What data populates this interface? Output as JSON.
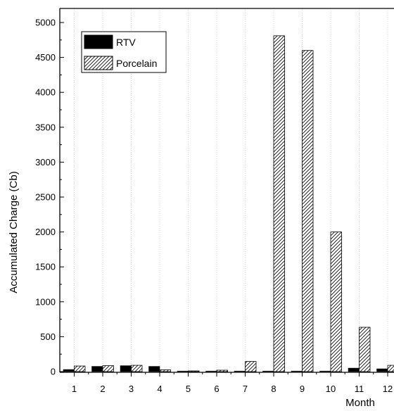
{
  "chart_data": {
    "type": "bar",
    "title": "",
    "xlabel": "Month",
    "ylabel": "Accumulated Charge (Cb)",
    "categories": [
      "1",
      "2",
      "3",
      "4",
      "5",
      "6",
      "7",
      "8",
      "9",
      "10",
      "11",
      "12"
    ],
    "series": [
      {
        "name": "RTV",
        "values": [
          30,
          75,
          85,
          75,
          0,
          0,
          0,
          0,
          0,
          5,
          50,
          40
        ],
        "color": "#000000",
        "pattern": "solid"
      },
      {
        "name": "Porcelain",
        "values": [
          80,
          85,
          90,
          25,
          10,
          20,
          145,
          4810,
          4600,
          2000,
          635,
          90
        ],
        "color": "#ffffff",
        "pattern": "diagonal-hatch"
      }
    ],
    "yticks": [
      0,
      500,
      1000,
      1500,
      2000,
      2500,
      3000,
      3500,
      4000,
      4500,
      5000
    ],
    "ylim": [
      0,
      5200
    ],
    "grid": {
      "x": true,
      "y": false,
      "style": "dotted"
    },
    "legend_position": "top-left"
  }
}
